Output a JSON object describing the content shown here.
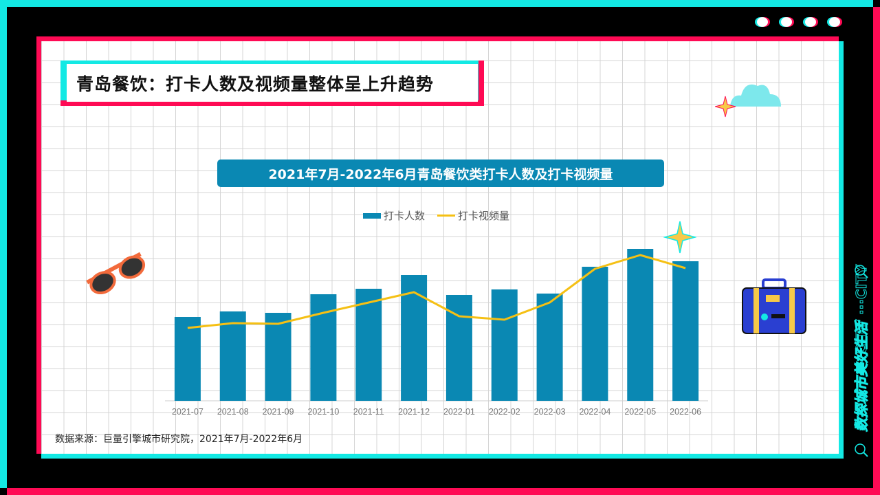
{
  "slide": {
    "title": "青岛餐饮：打卡人数及视频量整体呈上升趋势",
    "source": "数据来源：巨量引擎城市研究院，2021年7月-2022年6月",
    "side_text": "数探城市美好生活",
    "side_text_en": "CITY ···CITY"
  },
  "colors": {
    "cyan": "#13e9e4",
    "red": "#ff0a54",
    "bar": "#0a88b3",
    "line": "#f5c014"
  },
  "chart_data": {
    "type": "bar+line",
    "title": "2021年7月-2022年6月青岛餐饮类打卡人数及打卡视频量",
    "categories": [
      "2021-07",
      "2021-08",
      "2021-09",
      "2021-10",
      "2021-11",
      "2021-12",
      "2022-01",
      "2022-02",
      "2022-03",
      "2022-04",
      "2022-05",
      "2022-06"
    ],
    "series": [
      {
        "name": "打卡人数",
        "type": "bar",
        "values": [
          122,
          130,
          128,
          155,
          163,
          183,
          154,
          162,
          156,
          195,
          221,
          203
        ]
      },
      {
        "name": "打卡视频量",
        "type": "line",
        "values": [
          106,
          113,
          112,
          128,
          143,
          158,
          123,
          118,
          143,
          192,
          212,
          193
        ]
      }
    ],
    "ylim": [
      0,
      240
    ],
    "y_axis_labels": "none (relative values)",
    "grid": true,
    "legend": "top"
  }
}
